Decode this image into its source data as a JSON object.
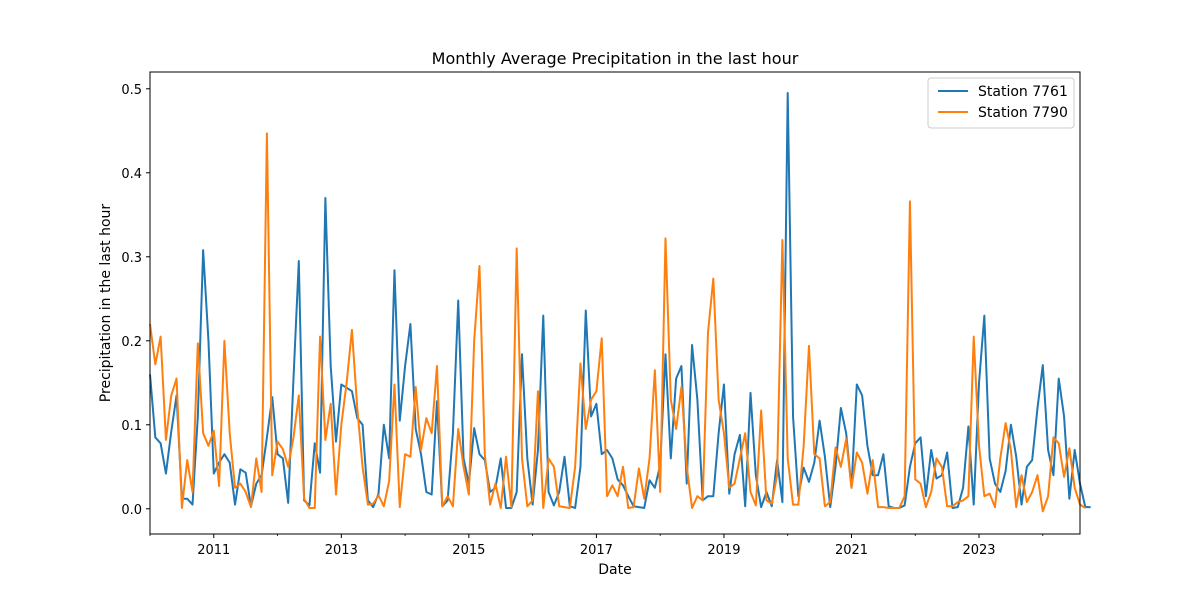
{
  "chart_data": {
    "type": "line",
    "title": "Monthly Average Precipitation in the last hour",
    "xlabel": "Date",
    "ylabel": "Precipitation in the last hour",
    "x_start": "2010-01",
    "x_end": "2024-08",
    "xlim": [
      "2010-01",
      "2024-08"
    ],
    "ylim": [
      -0.03,
      0.52
    ],
    "y_ticks": [
      0.0,
      0.1,
      0.2,
      0.3,
      0.4,
      0.5
    ],
    "y_tick_labels": [
      "0.0",
      "0.1",
      "0.2",
      "0.3",
      "0.4",
      "0.5"
    ],
    "x_ticks": [
      "2011-01",
      "2013-01",
      "2015-01",
      "2017-01",
      "2019-01",
      "2021-01",
      "2023-01"
    ],
    "x_tick_labels": [
      "2011",
      "2013",
      "2015",
      "2017",
      "2019",
      "2021",
      "2023"
    ],
    "legend_position": "top-right",
    "grid": false,
    "series": [
      {
        "name": "Station 7761",
        "color": "#1f77b4",
        "values": [
          0.16,
          0.085,
          0.078,
          0.042,
          0.092,
          0.135,
          0.012,
          0.012,
          0.005,
          0.11,
          0.308,
          0.2,
          0.042,
          0.055,
          0.065,
          0.055,
          0.005,
          0.047,
          0.043,
          0.003,
          0.03,
          0.04,
          0.085,
          0.133,
          0.065,
          0.06,
          0.007,
          0.155,
          0.295,
          0.01,
          0.004,
          0.078,
          0.043,
          0.37,
          0.17,
          0.08,
          0.148,
          0.144,
          0.14,
          0.108,
          0.1,
          0.01,
          0.002,
          0.018,
          0.1,
          0.06,
          0.284,
          0.105,
          0.17,
          0.22,
          0.095,
          0.065,
          0.02,
          0.017,
          0.128,
          0.003,
          0.01,
          0.09,
          0.248,
          0.06,
          0.03,
          0.096,
          0.065,
          0.058,
          0.02,
          0.025,
          0.06,
          0.001,
          0.001,
          0.02,
          0.184,
          0.06,
          0.005,
          0.07,
          0.23,
          0.02,
          0.004,
          0.02,
          0.062,
          0.003,
          0.001,
          0.05,
          0.236,
          0.11,
          0.125,
          0.065,
          0.07,
          0.06,
          0.035,
          0.028,
          0.015,
          0.003,
          0.002,
          0.001,
          0.034,
          0.025,
          0.052,
          0.184,
          0.06,
          0.155,
          0.17,
          0.03,
          0.195,
          0.13,
          0.01,
          0.015,
          0.015,
          0.09,
          0.148,
          0.018,
          0.065,
          0.088,
          0.003,
          0.138,
          0.04,
          0.002,
          0.02,
          0.003,
          0.058,
          0.008,
          0.495,
          0.11,
          0.015,
          0.049,
          0.032,
          0.055,
          0.105,
          0.062,
          0.002,
          0.05,
          0.12,
          0.09,
          0.025,
          0.148,
          0.135,
          0.075,
          0.04,
          0.04,
          0.065,
          0.003,
          0.001,
          0.001,
          0.004,
          0.05,
          0.078,
          0.085,
          0.015,
          0.07,
          0.036,
          0.04,
          0.067,
          0.001,
          0.002,
          0.025,
          0.098,
          0.005,
          0.15,
          0.23,
          0.06,
          0.03,
          0.02,
          0.045,
          0.1,
          0.062,
          0.005,
          0.05,
          0.058,
          0.12,
          0.171,
          0.07,
          0.04,
          0.155,
          0.11,
          0.012,
          0.07,
          0.03,
          0.002,
          0.002
        ]
      },
      {
        "name": "Station 7790",
        "color": "#ff7f0e",
        "values": [
          0.22,
          0.172,
          0.205,
          0.082,
          0.135,
          0.155,
          0.001,
          0.058,
          0.02,
          0.197,
          0.09,
          0.075,
          0.093,
          0.027,
          0.2,
          0.09,
          0.025,
          0.03,
          0.02,
          0.002,
          0.06,
          0.02,
          0.447,
          0.04,
          0.08,
          0.071,
          0.05,
          0.085,
          0.135,
          0.012,
          0.001,
          0.001,
          0.205,
          0.082,
          0.125,
          0.017,
          0.1,
          0.15,
          0.213,
          0.12,
          0.05,
          0.005,
          0.006,
          0.016,
          0.003,
          0.033,
          0.148,
          0.002,
          0.065,
          0.062,
          0.145,
          0.07,
          0.108,
          0.09,
          0.17,
          0.003,
          0.015,
          0.003,
          0.095,
          0.05,
          0.017,
          0.2,
          0.289,
          0.065,
          0.005,
          0.03,
          0.001,
          0.062,
          0.002,
          0.31,
          0.06,
          0.003,
          0.01,
          0.14,
          0.001,
          0.06,
          0.05,
          0.003,
          0.002,
          0.001,
          0.05,
          0.173,
          0.095,
          0.13,
          0.14,
          0.203,
          0.015,
          0.028,
          0.015,
          0.05,
          0.001,
          0.002,
          0.048,
          0.012,
          0.06,
          0.165,
          0.02,
          0.322,
          0.13,
          0.095,
          0.145,
          0.05,
          0.001,
          0.015,
          0.01,
          0.21,
          0.274,
          0.13,
          0.09,
          0.025,
          0.03,
          0.06,
          0.09,
          0.02,
          0.004,
          0.117,
          0.01,
          0.006,
          0.04,
          0.32,
          0.06,
          0.005,
          0.005,
          0.075,
          0.194,
          0.065,
          0.06,
          0.003,
          0.008,
          0.073,
          0.05,
          0.083,
          0.025,
          0.067,
          0.055,
          0.018,
          0.058,
          0.002,
          0.002,
          0.001,
          0.001,
          0.001,
          0.015,
          0.366,
          0.035,
          0.03,
          0.002,
          0.02,
          0.06,
          0.05,
          0.003,
          0.003,
          0.008,
          0.01,
          0.015,
          0.205,
          0.075,
          0.015,
          0.018,
          0.002,
          0.06,
          0.102,
          0.07,
          0.002,
          0.04,
          0.008,
          0.02,
          0.04,
          -0.003,
          0.015,
          0.085,
          0.078,
          0.038,
          0.072,
          0.025,
          0.005,
          0.001
        ]
      }
    ]
  }
}
